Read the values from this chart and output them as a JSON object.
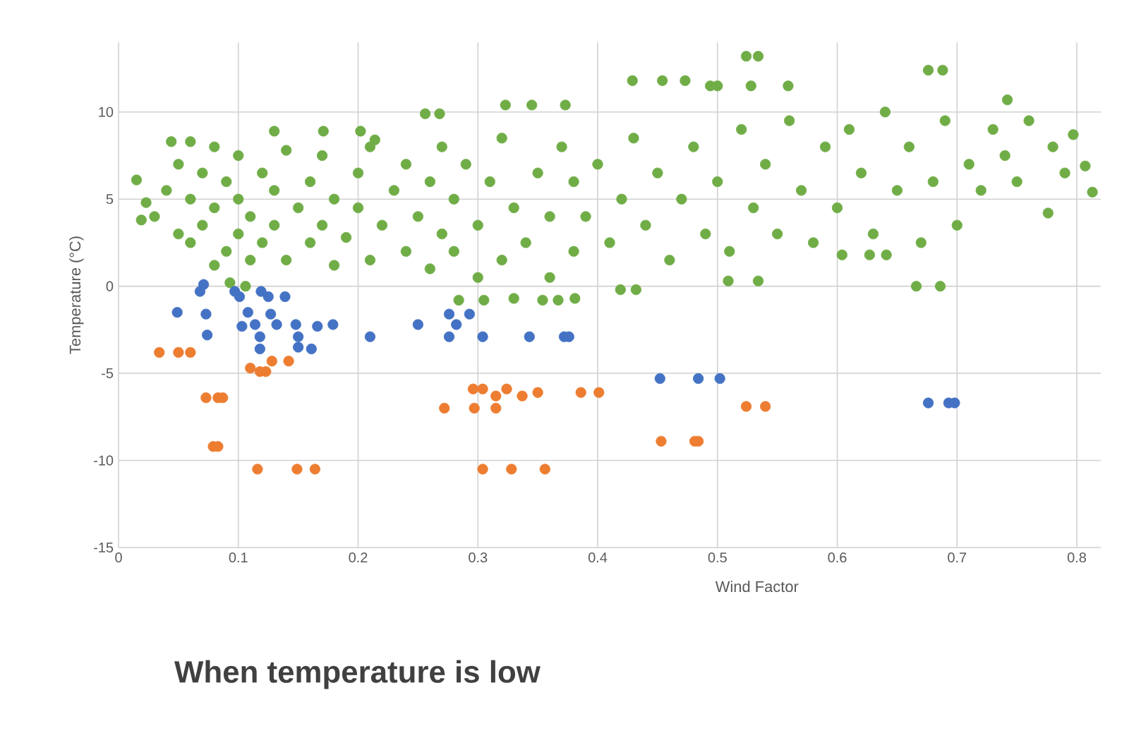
{
  "chart_data": {
    "type": "scatter",
    "xlabel": "Wind Factor",
    "ylabel": "Temperature (°C)",
    "annotations": [
      "When temperature is low"
    ],
    "xlim": [
      0,
      0.82
    ],
    "ylim": [
      -15,
      14
    ],
    "xticks": [
      0,
      0.1,
      0.2,
      0.3,
      0.4,
      0.5,
      0.6,
      0.7,
      0.8
    ],
    "yticks": [
      -15,
      -10,
      -5,
      0,
      5,
      10
    ],
    "grid": true,
    "marker": "circle",
    "series": [
      {
        "color": "#70ad47",
        "x": [
          0.015,
          0.023,
          0.019,
          0.044,
          0.06,
          0.13,
          0.171,
          0.202,
          0.214,
          0.256,
          0.268,
          0.323,
          0.345,
          0.373,
          0.524,
          0.534,
          0.429,
          0.454,
          0.473,
          0.494,
          0.5,
          0.528,
          0.559,
          0.676,
          0.688,
          0.742,
          0.776,
          0.666,
          0.686,
          0.419,
          0.432,
          0.509,
          0.534,
          0.604,
          0.627,
          0.641,
          0.813,
          0.807,
          0.797,
          0.284,
          0.305,
          0.33,
          0.354,
          0.367,
          0.381,
          0.093,
          0.106,
          0.03,
          0.04,
          0.05,
          0.05,
          0.06,
          0.06,
          0.07,
          0.07,
          0.08,
          0.08,
          0.08,
          0.09,
          0.09,
          0.1,
          0.1,
          0.1,
          0.11,
          0.11,
          0.12,
          0.12,
          0.13,
          0.13,
          0.14,
          0.14,
          0.15,
          0.16,
          0.16,
          0.17,
          0.17,
          0.18,
          0.18,
          0.19,
          0.2,
          0.2,
          0.21,
          0.21,
          0.22,
          0.23,
          0.24,
          0.24,
          0.25,
          0.26,
          0.26,
          0.27,
          0.27,
          0.28,
          0.28,
          0.29,
          0.3,
          0.3,
          0.31,
          0.32,
          0.32,
          0.33,
          0.34,
          0.35,
          0.36,
          0.36,
          0.37,
          0.38,
          0.38,
          0.39,
          0.4,
          0.41,
          0.42,
          0.43,
          0.44,
          0.45,
          0.46,
          0.47,
          0.48,
          0.49,
          0.5,
          0.51,
          0.52,
          0.53,
          0.54,
          0.55,
          0.56,
          0.57,
          0.58,
          0.59,
          0.6,
          0.61,
          0.62,
          0.63,
          0.64,
          0.65,
          0.66,
          0.67,
          0.68,
          0.69,
          0.7,
          0.71,
          0.72,
          0.73,
          0.74,
          0.75,
          0.76,
          0.78,
          0.79
        ],
        "values": [
          6.1,
          4.8,
          3.8,
          8.3,
          8.3,
          8.9,
          8.9,
          8.9,
          8.4,
          9.9,
          9.9,
          10.4,
          10.4,
          10.4,
          13.2,
          13.2,
          11.8,
          11.8,
          11.8,
          11.5,
          11.5,
          11.5,
          11.5,
          12.4,
          12.4,
          10.7,
          4.2,
          0,
          0,
          -0.2,
          -0.2,
          0.3,
          0.3,
          1.8,
          1.8,
          1.8,
          5.4,
          6.9,
          8.7,
          -0.8,
          -0.8,
          -0.7,
          -0.8,
          -0.8,
          -0.7,
          0.2,
          0,
          4.0,
          5.5,
          3.0,
          7.0,
          2.5,
          5.0,
          6.5,
          3.5,
          1.2,
          4.5,
          8.0,
          2.0,
          6.0,
          3.0,
          5.0,
          7.5,
          1.5,
          4.0,
          6.5,
          2.5,
          5.5,
          3.5,
          7.8,
          1.5,
          4.5,
          2.5,
          6.0,
          3.5,
          7.5,
          5.0,
          1.2,
          2.8,
          4.5,
          6.5,
          1.5,
          8.0,
          3.5,
          5.5,
          2.0,
          7.0,
          4.0,
          1.0,
          6.0,
          3.0,
          8.0,
          2.0,
          5.0,
          7.0,
          0.5,
          3.5,
          6.0,
          1.5,
          8.5,
          4.5,
          2.5,
          6.5,
          0.5,
          4.0,
          8.0,
          2.0,
          6.0,
          4.0,
          7.0,
          2.5,
          5.0,
          8.5,
          3.5,
          6.5,
          1.5,
          5.0,
          8.0,
          3.0,
          6.0,
          2.0,
          9.0,
          4.5,
          7.0,
          3.0,
          9.5,
          5.5,
          2.5,
          8.0,
          4.5,
          9.0,
          6.5,
          3.0,
          10.0,
          5.5,
          8.0,
          2.5,
          6.0,
          9.5,
          3.5,
          7.0,
          5.5,
          9.0,
          7.5,
          6.0,
          9.5,
          8.0,
          6.5
        ]
      },
      {
        "color": "#4472c4",
        "x": [
          0.071,
          0.068,
          0.049,
          0.073,
          0.074,
          0.097,
          0.101,
          0.119,
          0.125,
          0.139,
          0.108,
          0.127,
          0.103,
          0.114,
          0.118,
          0.118,
          0.132,
          0.148,
          0.15,
          0.15,
          0.161,
          0.166,
          0.179,
          0.21,
          0.25,
          0.276,
          0.293,
          0.282,
          0.276,
          0.304,
          0.343,
          0.372,
          0.376,
          0.452,
          0.484,
          0.502,
          0.676,
          0.693,
          0.698
        ],
        "values": [
          0.1,
          -0.3,
          -1.5,
          -1.6,
          -2.8,
          -0.3,
          -0.6,
          -0.3,
          -0.6,
          -0.6,
          -1.5,
          -1.6,
          -2.3,
          -2.2,
          -2.9,
          -3.6,
          -2.2,
          -2.2,
          -2.9,
          -3.5,
          -3.6,
          -2.3,
          -2.2,
          -2.9,
          -2.2,
          -1.6,
          -1.6,
          -2.2,
          -2.9,
          -2.9,
          -2.9,
          -2.9,
          -2.9,
          -5.3,
          -5.3,
          -5.3,
          -6.7,
          -6.7,
          -6.7
        ]
      },
      {
        "color": "#ed7d31",
        "x": [
          0.034,
          0.05,
          0.06,
          0.073,
          0.083,
          0.087,
          0.079,
          0.083,
          0.11,
          0.118,
          0.123,
          0.128,
          0.142,
          0.116,
          0.149,
          0.164,
          0.272,
          0.297,
          0.315,
          0.296,
          0.304,
          0.315,
          0.324,
          0.337,
          0.35,
          0.386,
          0.401,
          0.304,
          0.328,
          0.356,
          0.524,
          0.536,
          0.54,
          0.453,
          0.481,
          0.484
        ],
        "values": [
          -3.8,
          -3.8,
          -3.8,
          -6.4,
          -6.4,
          -6.4,
          -9.2,
          -9.2,
          -4.7,
          -4.9,
          -4.9,
          -4.3,
          -4.3,
          -10.5,
          -10.5,
          -10.5,
          -7.0,
          -7.0,
          -7.0,
          -5.9,
          -5.9,
          -6.3,
          -5.9,
          -6.3,
          -6.1,
          -6.1,
          -6.1,
          -10.5,
          -10.5,
          -10.5,
          -6.9,
          null,
          -6.9,
          -8.9,
          -8.9,
          -8.9
        ]
      }
    ]
  }
}
